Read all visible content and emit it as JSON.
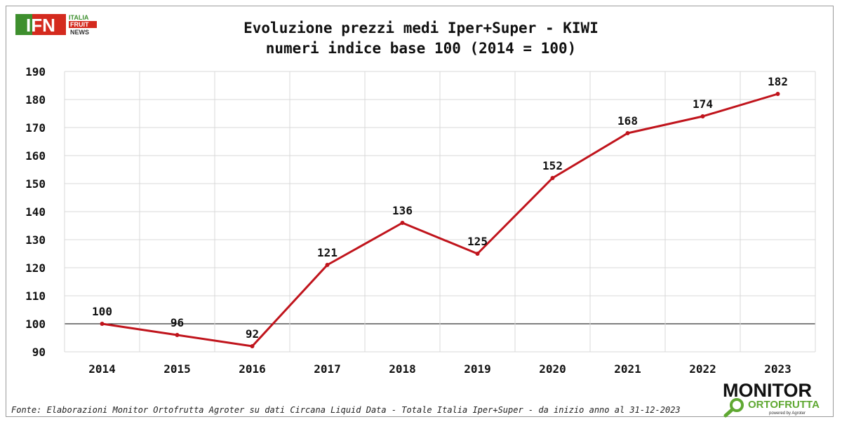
{
  "header": {
    "title_line1": "Evoluzione prezzi medi Iper+Super - KIWI",
    "title_line2": "numeri indice base 100 (2014 = 100)"
  },
  "logo_ifn": {
    "mark": "IFN",
    "line1": "ITALIA",
    "line2": "FRUIT",
    "line3": "NEWS",
    "colors": {
      "red": "#d42a1e",
      "green": "#3e8f2e"
    }
  },
  "footer": {
    "source": "Fonte: Elaborazioni Monitor Ortofrutta Agroter su dati Circana Liquid Data - Totale Italia Iper+Super -  da inizio anno al 31-12-2023",
    "monitor_logo": {
      "word": "MONITOR",
      "sub": "ORTOFRUTTA",
      "powered": "powered by Agroter",
      "accent": "#5fa832"
    }
  },
  "chart_data": {
    "type": "line",
    "title": "Evoluzione prezzi medi Iper+Super - KIWI",
    "subtitle": "numeri indice base 100 (2014 = 100)",
    "categories": [
      "2014",
      "2015",
      "2016",
      "2017",
      "2018",
      "2019",
      "2020",
      "2021",
      "2022",
      "2023"
    ],
    "series": [
      {
        "name": "KIWI",
        "values": [
          100,
          96,
          92,
          121,
          136,
          125,
          152,
          168,
          174,
          182
        ],
        "color": "#c0141c"
      }
    ],
    "data_labels": [
      100,
      96,
      92,
      121,
      136,
      125,
      152,
      168,
      174,
      182
    ],
    "ylim": [
      90,
      190
    ],
    "yticks": [
      90,
      100,
      110,
      120,
      130,
      140,
      150,
      160,
      170,
      180,
      190
    ],
    "reference_line": 100,
    "grid": true,
    "xlabel": "",
    "ylabel": ""
  }
}
